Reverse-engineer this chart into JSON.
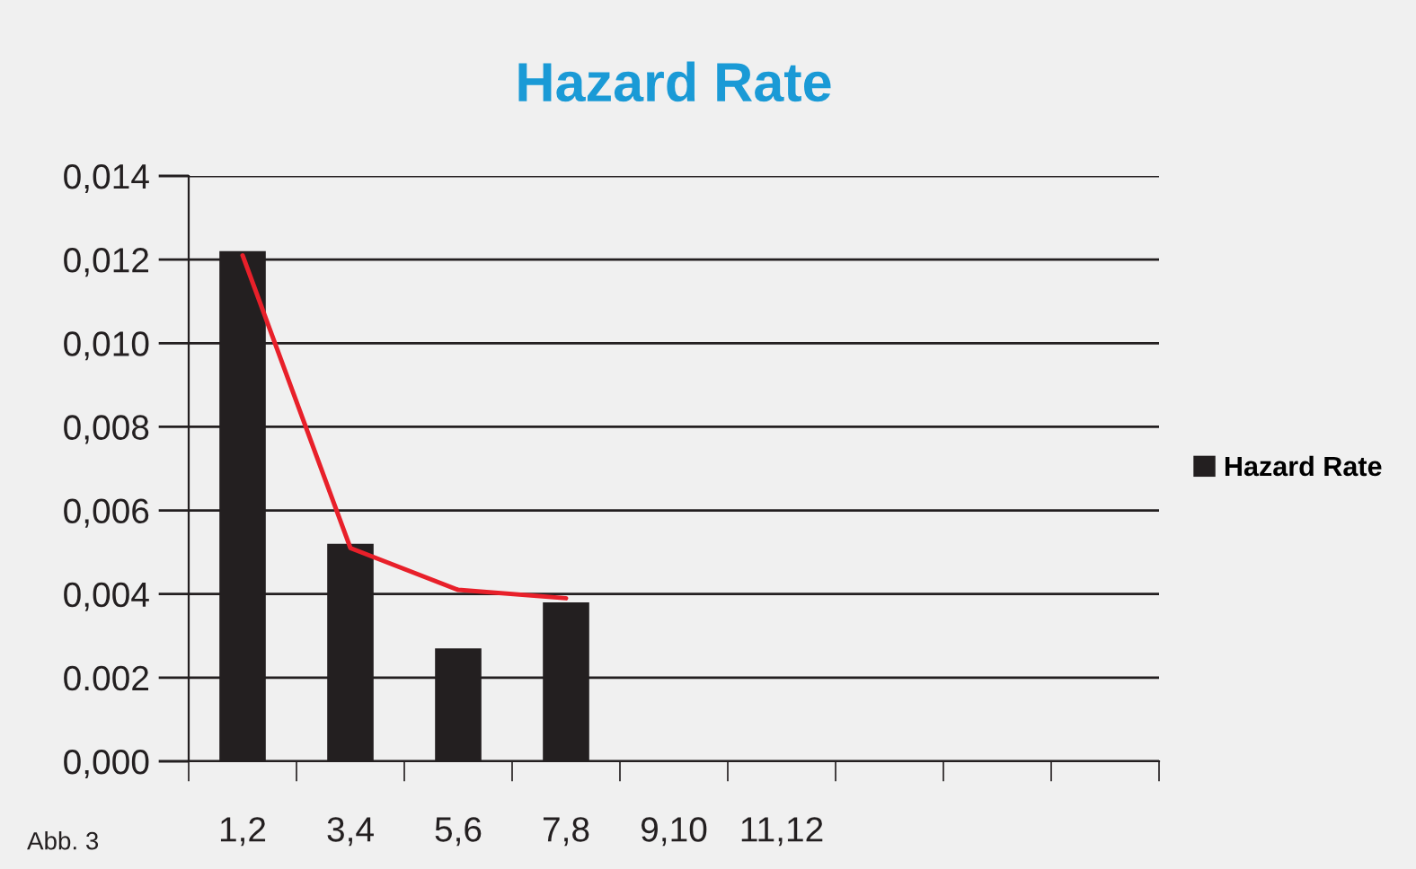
{
  "chart_data": {
    "type": "bar",
    "title": "Hazard Rate",
    "categories": [
      "1,2",
      "3,4",
      "5,6",
      "7,8",
      "9,10",
      "11,12",
      null,
      null,
      null
    ],
    "series": [
      {
        "name": "Hazard Rate",
        "color": "#231f20",
        "values": [
          0.0122,
          0.0052,
          0.0027,
          0.0038,
          null,
          null,
          null,
          null,
          null
        ]
      },
      {
        "type": "line",
        "color": "#e8202a",
        "values": [
          0.0121,
          0.0051,
          0.0041,
          0.0039,
          null,
          null,
          null,
          null,
          null
        ]
      }
    ],
    "ylim": [
      0,
      0.014
    ],
    "yticks": [
      {
        "value": 0,
        "label": "0,000"
      },
      {
        "value": 0.002,
        "label": "0.002"
      },
      {
        "value": 0.004,
        "label": "0,004"
      },
      {
        "value": 0.006,
        "label": "0,006"
      },
      {
        "value": 0.008,
        "label": "0,008"
      },
      {
        "value": 0.01,
        "label": "0,010"
      },
      {
        "value": 0.012,
        "label": "0,012"
      },
      {
        "value": 0.014,
        "label": "0,014"
      }
    ],
    "grid": "y",
    "legend": "right",
    "marker": "none",
    "line_style": "solid",
    "annotations": [
      "Abb. 3"
    ]
  }
}
